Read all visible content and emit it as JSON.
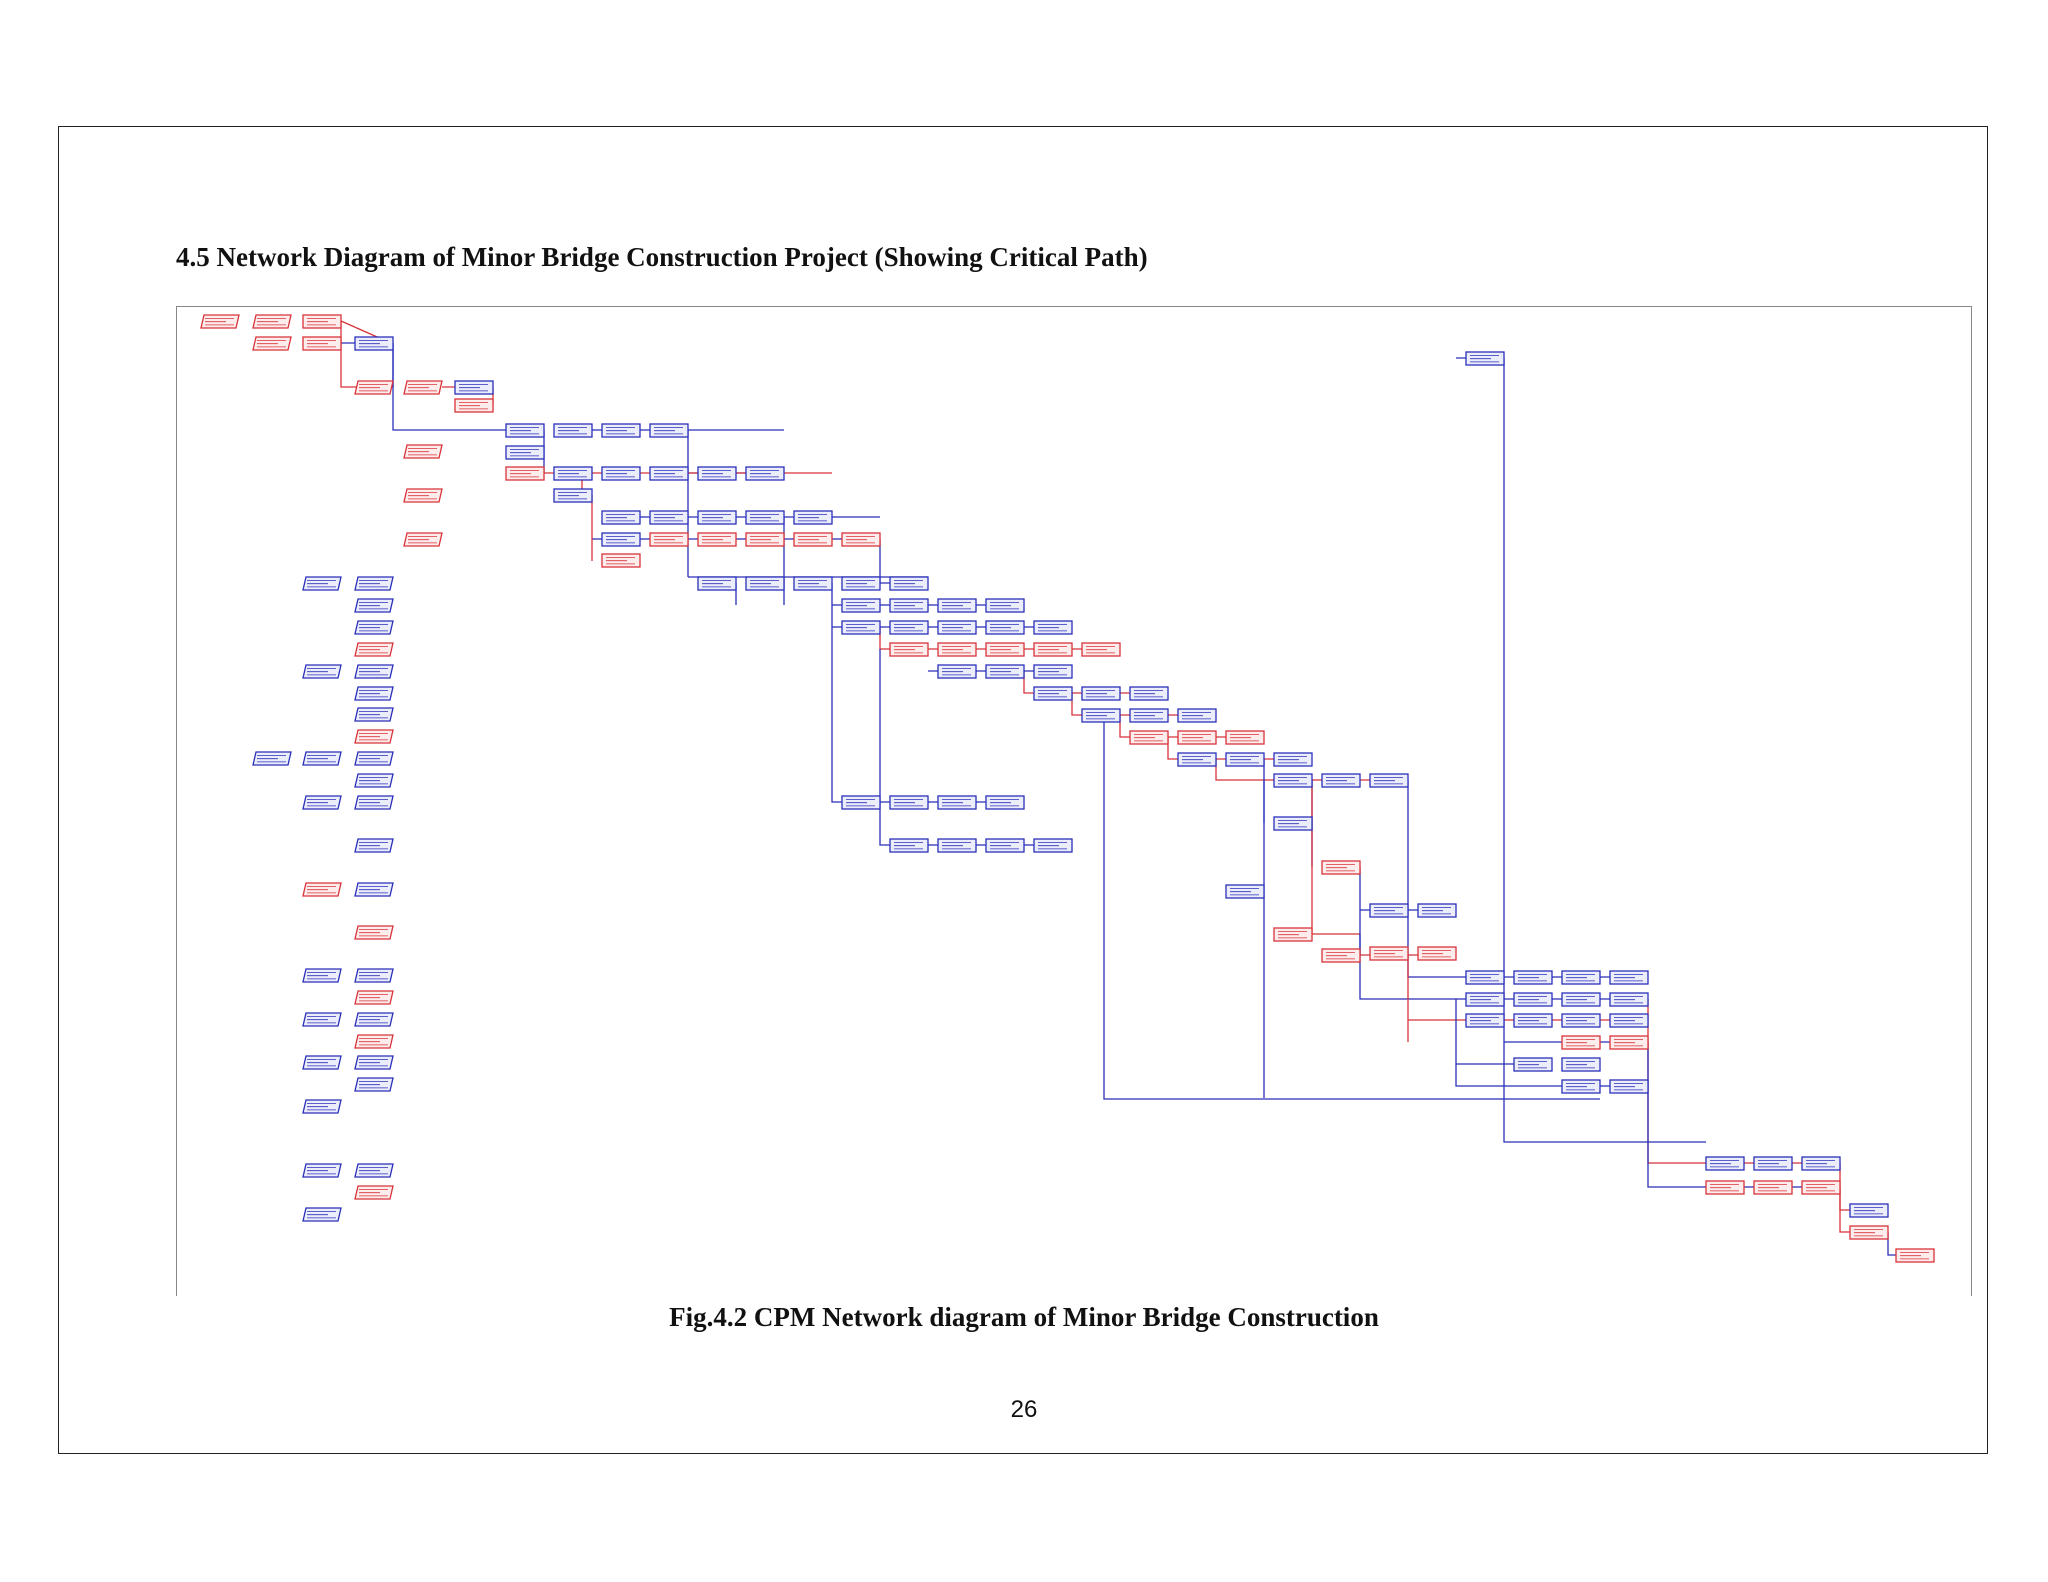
{
  "heading": "4.5 Network Diagram of Minor Bridge Construction Project (Showing Critical Path)",
  "caption": "Fig.4.2 CPM Network diagram of Minor Bridge Construction",
  "page_number": "26",
  "colors": {
    "critical": "#d8333a",
    "non_critical": "#2a2fb8",
    "critical_fill": "#fdecec",
    "non_critical_fill": "#ecedfb"
  }
}
